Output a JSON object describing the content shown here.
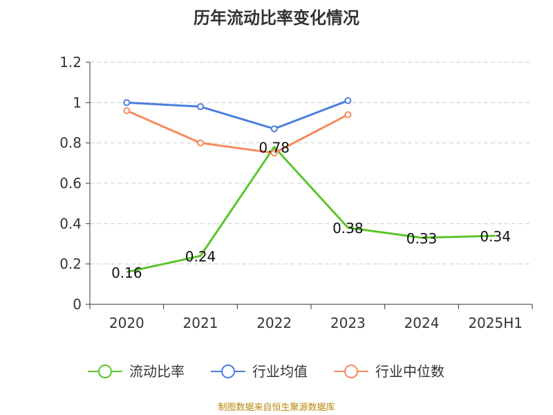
{
  "title": "历年流动比率变化情况",
  "source": "制图数据来自恒生聚源数据库",
  "colors": {
    "current_ratio": "#5cc42a",
    "industry_avg": "#4a7fdc",
    "industry_median": "#f58b5c",
    "grid": "#cccccc",
    "axis": "#333333"
  },
  "chart_data": {
    "type": "line",
    "categories": [
      "2020",
      "2021",
      "2022",
      "2023",
      "2024",
      "2025H1"
    ],
    "ylim": [
      0,
      1.2
    ],
    "yticks": [
      "0",
      "0.2",
      "0.4",
      "0.6",
      "0.8",
      "1",
      "1.2"
    ],
    "grid": true,
    "legend_position": "bottom",
    "series": [
      {
        "name": "流动比率",
        "values": [
          0.16,
          0.24,
          0.78,
          0.38,
          0.33,
          0.34
        ],
        "labels": [
          "0.16",
          "0.24",
          "0.78",
          "0.38",
          "0.33",
          "0.34"
        ],
        "show_markers": false
      },
      {
        "name": "行业均值",
        "values": [
          1.0,
          0.98,
          0.87,
          1.01,
          null,
          null
        ],
        "show_markers": true
      },
      {
        "name": "行业中位数",
        "values": [
          0.96,
          0.8,
          0.75,
          0.94,
          null,
          null
        ],
        "show_markers": true
      }
    ]
  }
}
